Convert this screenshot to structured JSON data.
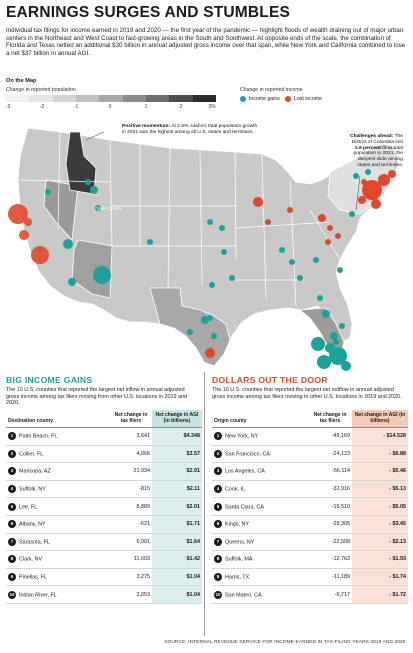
{
  "title": "EARNINGS SURGES AND STUMBLES",
  "intro": "Individual tax filings for income earned in 2019 and 2020 — the first year of the pandemic — highlight floods of wealth draining out of major urban centers in the Northeast and West Coast to fast-growing areas in the South and Southwest. At opposite ends of the scale, the combination of Florida and Texas netted an additional $30 billion in annual adjusted gross income over that span, while New York and California combined to lose a net $37 billion in annual AGI.",
  "map": {
    "on_the_map": "On the Map",
    "change_label": "Change in reported population",
    "scale_ticks": [
      "-3",
      "-2",
      "-1",
      "0",
      "1",
      "2",
      "3%"
    ],
    "legend_title": "Change in reported income",
    "legend_gains": "Income gains",
    "legend_lost": "Lost income",
    "colors": {
      "gain": "#1aa39a",
      "loss": "#e2472c",
      "idaho": "#3b3b3b"
    },
    "anno_idaho_bold": "Positive momentum:",
    "anno_idaho": "At 2.9%, Idaho's total population growth in 2021 was the highest among all U.S. states and territories.",
    "anno_dc_bold": "Challenges ahead:",
    "anno_dc_1": "The District of Columbia lost",
    "anno_dc_pct": "2.9 percent",
    "anno_dc_2": "of its total population in 2021, the deepest slide among states and territories.",
    "teton_label": "Teton County"
  },
  "gains": {
    "title": "BIG INCOME GAINS",
    "desc": "The 10 U.S. counties that reported the largest net inflow in annual adjusted gross income among tax filers moving from other U.S. locations in 2019 and 2020.",
    "col_county": "Destination county",
    "col_filers": "Net change in tax filers",
    "col_agi": "Net change in AGI (in billions)",
    "rows": [
      {
        "rank": "1",
        "county": "Palm Beach, FL",
        "filers": "3,641",
        "agi": "$4.348"
      },
      {
        "rank": "2",
        "county": "Collier, FL",
        "filers": "4,066",
        "agi": "$3.57"
      },
      {
        "rank": "3",
        "county": "Maricopa, AZ",
        "filers": "21,934",
        "agi": "$2.91"
      },
      {
        "rank": "4",
        "county": "Suffolk, NY",
        "filers": "-815",
        "agi": "$2.11"
      },
      {
        "rank": "5",
        "county": "Lee, FL",
        "filers": "8,889",
        "agi": "$2.01"
      },
      {
        "rank": "6",
        "county": "Albany, NY",
        "filers": "-621",
        "agi": "$1.71"
      },
      {
        "rank": "7",
        "county": "Sarasota, FL",
        "filers": "6,001",
        "agi": "$1.64"
      },
      {
        "rank": "8",
        "county": "Clark, NV",
        "filers": "11,603",
        "agi": "$1.42"
      },
      {
        "rank": "9",
        "county": "Pinellas, FL",
        "filers": "3,275",
        "agi": "$1.04"
      },
      {
        "rank": "10",
        "county": "Indian River, FL",
        "filers": "2,053",
        "agi": "$1.04"
      }
    ]
  },
  "losses": {
    "title": "DOLLARS OUT THE DOOR",
    "desc": "The 10 U.S. counties that reported the largest net outflow in annual adjusted gross income among tax filers moving to other U.S. locations in 2019 and 2020.",
    "col_county": "Origin county",
    "col_filers": "Net change in tax filers",
    "col_agi": "Net change in AGI (in billions)",
    "rows": [
      {
        "rank": "1",
        "county": "New York, NY",
        "filers": "-49,169",
        "agi": "- $14.528"
      },
      {
        "rank": "2",
        "county": "San Francisco, CA",
        "filers": "-24,123",
        "agi": "- $6.88"
      },
      {
        "rank": "3",
        "county": "Los Angeles, CA",
        "filers": "-56,114",
        "agi": "- $5.46"
      },
      {
        "rank": "4",
        "county": "Cook, IL",
        "filers": "-32,916",
        "agi": "- $5.13"
      },
      {
        "rank": "5",
        "county": "Santa Clara, CA",
        "filers": "-16,510",
        "agi": "- $5.05"
      },
      {
        "rank": "6",
        "county": "Kings, NY",
        "filers": "-29,305",
        "agi": "- $3.45"
      },
      {
        "rank": "7",
        "county": "Queens, NY",
        "filers": "-22,508",
        "agi": "- $2.13"
      },
      {
        "rank": "8",
        "county": "Suffolk, MA",
        "filers": "-12,763",
        "agi": "- $1.93"
      },
      {
        "rank": "9",
        "county": "Harris, TX",
        "filers": "-11,189",
        "agi": "- $1.74"
      },
      {
        "rank": "10",
        "county": "San Mateo, CA",
        "filers": "-6,717",
        "agi": "- $1.72"
      }
    ]
  },
  "source": "SOURCE: INTERNAL REVENUE SERVICE FOR INCOME EARNED IN TAX-FILING YEARS 2019 AND 2020."
}
